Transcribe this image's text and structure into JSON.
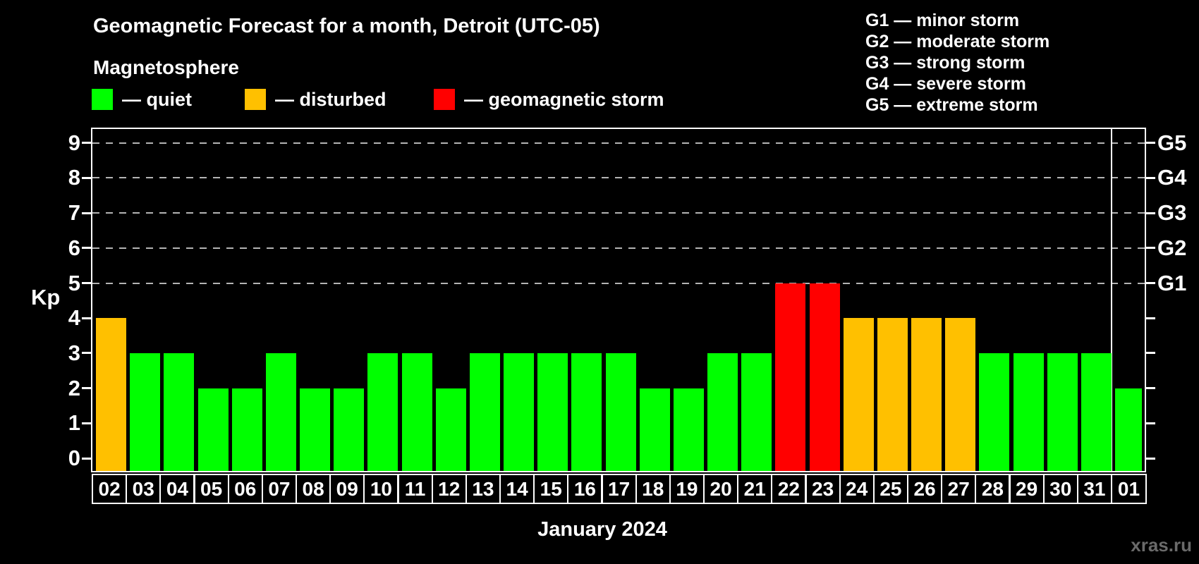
{
  "title": "Geomagnetic Forecast for a month, Detroit (UTC-05)",
  "legend": {
    "heading": "Magnetosphere",
    "items": [
      {
        "key": "quiet",
        "label": "— quiet",
        "color": "#00FF00"
      },
      {
        "key": "disturbed",
        "label": "— disturbed",
        "color": "#FFC000"
      },
      {
        "key": "storm",
        "label": "— geomagnetic storm",
        "color": "#FF0000"
      }
    ]
  },
  "g_scale": {
    "items": [
      {
        "code": "G1",
        "text": "G1 — minor storm"
      },
      {
        "code": "G2",
        "text": "G2 — moderate storm"
      },
      {
        "code": "G3",
        "text": "G3 — strong storm"
      },
      {
        "code": "G4",
        "text": "G4 — severe storm"
      },
      {
        "code": "G5",
        "text": "G5 — extreme storm"
      }
    ]
  },
  "chart_data": {
    "type": "bar",
    "title": "Geomagnetic Forecast for a month, Detroit (UTC-05)",
    "ylabel": "Kp",
    "xlabel": "January 2024",
    "ylim": [
      0,
      9
    ],
    "yticks": [
      0,
      1,
      2,
      3,
      4,
      5,
      6,
      7,
      8,
      9
    ],
    "gridlines_at": [
      5,
      6,
      7,
      8,
      9
    ],
    "grid": "dashed-horizontal",
    "legend_position": "top-left",
    "right_axis": [
      {
        "value": 5,
        "label": "G1"
      },
      {
        "value": 6,
        "label": "G2"
      },
      {
        "value": 7,
        "label": "G3"
      },
      {
        "value": 8,
        "label": "G4"
      },
      {
        "value": 9,
        "label": "G5"
      }
    ],
    "categories": [
      "02",
      "03",
      "04",
      "05",
      "06",
      "07",
      "08",
      "09",
      "10",
      "11",
      "12",
      "13",
      "14",
      "15",
      "16",
      "17",
      "18",
      "19",
      "20",
      "21",
      "22",
      "23",
      "24",
      "25",
      "26",
      "27",
      "28",
      "29",
      "30",
      "31",
      "01"
    ],
    "values": [
      4,
      3,
      3,
      2,
      2,
      3,
      2,
      2,
      3,
      3,
      2,
      3,
      3,
      3,
      3,
      3,
      2,
      2,
      3,
      3,
      5,
      5,
      4,
      4,
      4,
      4,
      3,
      3,
      3,
      3,
      2
    ],
    "month_separator_after_category": "31",
    "colors": {
      "quiet": "#00FF00",
      "disturbed": "#FFC000",
      "storm": "#FF0000"
    },
    "color_rule": {
      "quiet_max": 3,
      "disturbed_value": 4,
      "storm_min": 5
    }
  },
  "watermark": "xras.ru"
}
